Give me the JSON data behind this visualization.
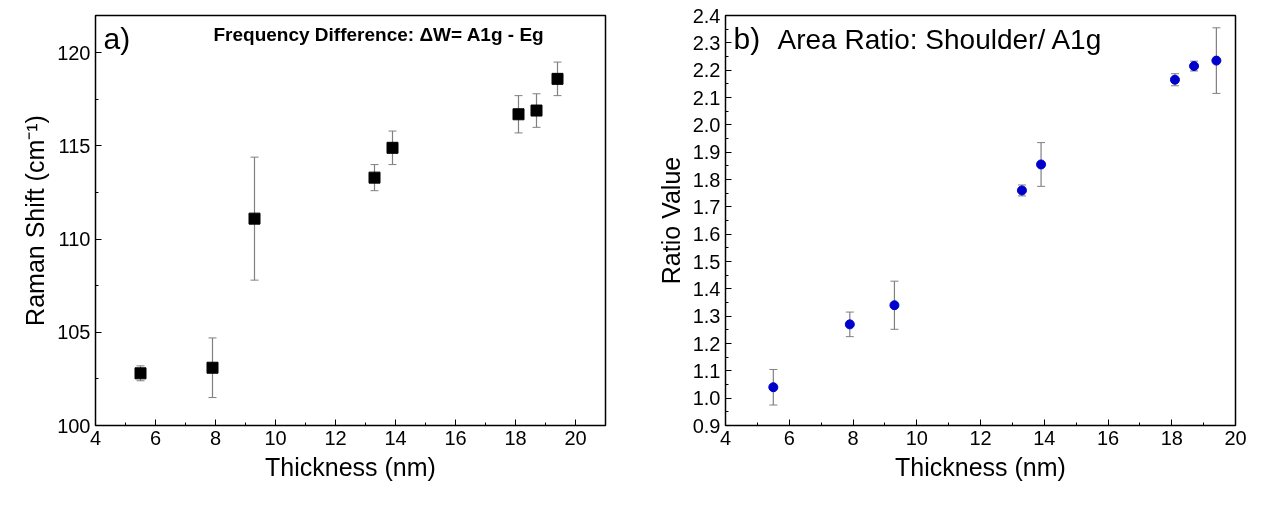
{
  "chart_data": [
    {
      "type": "scatter",
      "annotations": [
        "a)",
        "Frequency Difference: ΔW= A1g - Eg"
      ],
      "xlabel": "Thickness (nm)",
      "ylabel": "Raman Shift (cm⁻¹)",
      "marker": "square",
      "x": [
        5.5,
        7.9,
        9.3,
        13.3,
        13.9,
        18.1,
        18.7,
        19.4
      ],
      "series": [
        {
          "color": "#000000",
          "values": [
            102.8,
            103.1,
            111.1,
            113.3,
            114.9,
            116.7,
            116.9,
            118.6
          ],
          "errors": [
            0.4,
            1.6,
            3.3,
            0.7,
            0.9,
            1.0,
            0.9,
            0.9
          ]
        }
      ],
      "xlim": [
        4,
        21
      ],
      "xticks": [
        4,
        6,
        8,
        10,
        12,
        14,
        16,
        18,
        20
      ],
      "ylim": [
        100,
        122
      ],
      "yticks": [
        100,
        105,
        110,
        115,
        120
      ]
    },
    {
      "type": "scatter",
      "annotations": [
        "b)",
        "Area Ratio: Shoulder/ A1g"
      ],
      "xlabel": "Thickness (nm)",
      "ylabel": "Ratio Value",
      "marker": "circle",
      "x": [
        5.5,
        7.9,
        9.3,
        13.3,
        13.9,
        18.1,
        18.7,
        19.4
      ],
      "series": [
        {
          "color": "#0000cc",
          "values": [
            1.04,
            1.27,
            1.34,
            1.76,
            1.855,
            2.165,
            2.215,
            2.235
          ],
          "errors": [
            0.065,
            0.045,
            0.088,
            0.02,
            0.08,
            0.022,
            0.018,
            0.12
          ]
        }
      ],
      "xlim": [
        4,
        20
      ],
      "xticks": [
        4,
        6,
        8,
        10,
        12,
        14,
        16,
        18,
        20
      ],
      "ylim": [
        0.9,
        2.4
      ],
      "yticks": [
        0.9,
        {
          "value": 1.0,
          "label": "1.0"
        },
        1.1,
        1.2,
        1.3,
        1.4,
        1.5,
        1.6,
        1.7,
        1.8,
        1.9,
        {
          "value": 2.0,
          "label": "2.0"
        },
        2.1,
        2.2,
        2.3,
        2.4
      ]
    }
  ]
}
